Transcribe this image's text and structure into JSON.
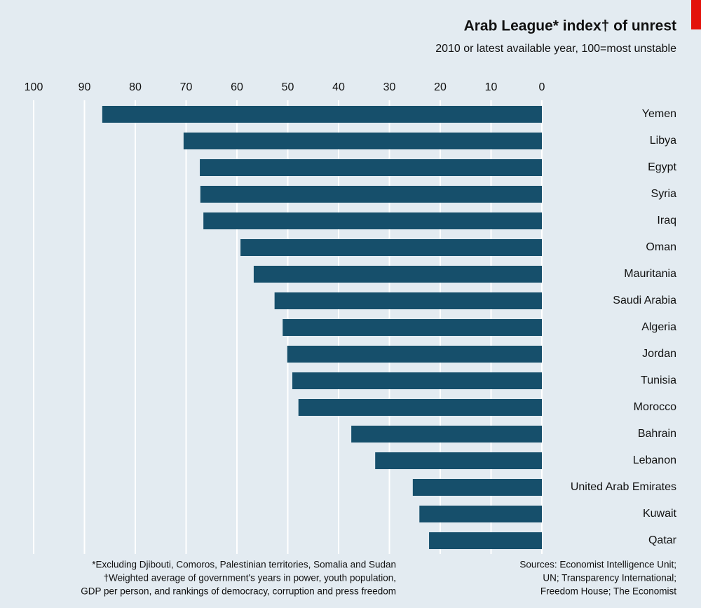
{
  "chart_data": {
    "type": "bar",
    "orientation": "horizontal",
    "title": "Arab League* index† of unrest",
    "subtitle": "2010 or latest available year, 100=most unstable",
    "categories": [
      "Yemen",
      "Libya",
      "Egypt",
      "Syria",
      "Iraq",
      "Oman",
      "Mauritania",
      "Saudi Arabia",
      "Algeria",
      "Jordan",
      "Tunisia",
      "Morocco",
      "Bahrain",
      "Lebanon",
      "United Arab Emirates",
      "Kuwait",
      "Qatar"
    ],
    "values": [
      86.5,
      70.5,
      67.3,
      67.2,
      66.6,
      59.3,
      56.7,
      52.6,
      51.0,
      50.1,
      49.1,
      47.9,
      37.5,
      32.8,
      25.4,
      24.1,
      22.2
    ],
    "color": "#164f6b",
    "xlim": [
      0,
      100
    ],
    "xticks": [
      0,
      10,
      20,
      30,
      40,
      50,
      60,
      70,
      80,
      90,
      100
    ],
    "grid": true,
    "footnotes": [
      "*Excluding Djibouti, Comoros, Palestinian territories, Somalia and Sudan",
      "†Weighted average of government's years in power, youth population,",
      "GDP per person, and rankings of democracy, corruption and press freedom"
    ],
    "sources": [
      "Sources: Economist Intelligence Unit;",
      "UN; Transparency International;",
      "Freedom House; The Economist"
    ]
  }
}
